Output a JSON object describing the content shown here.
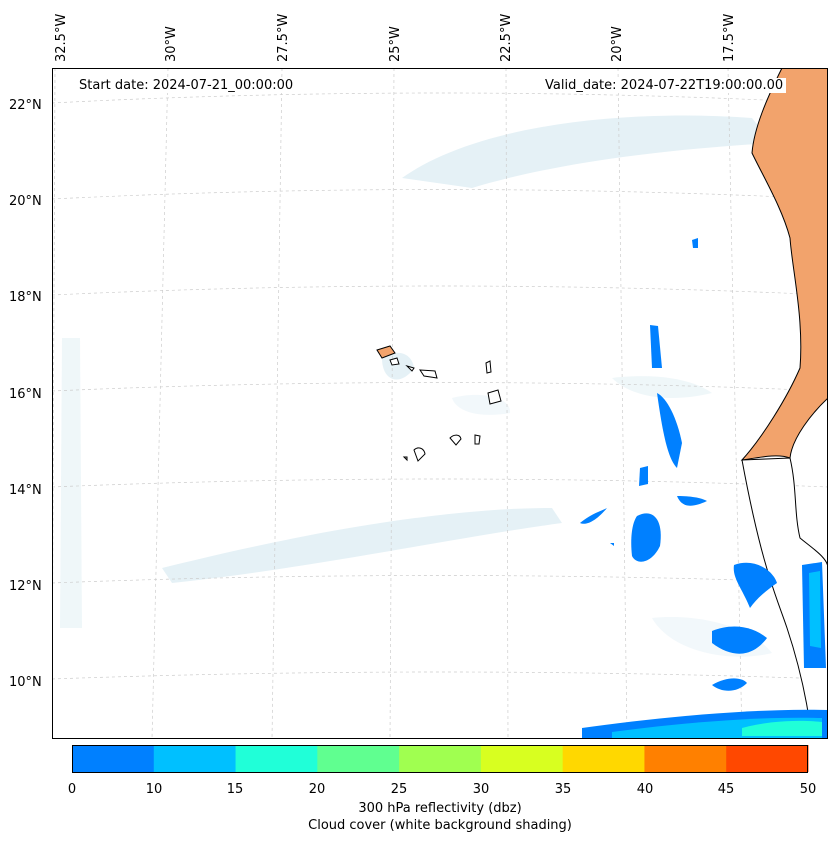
{
  "header": {
    "start_date": "Start date: 2024-07-21_00:00:00",
    "valid_date": "Valid_date: 2024-07-22T19:00:00.00"
  },
  "longitude_labels": [
    "32.5°W",
    "30°W",
    "27.5°W",
    "25°W",
    "22.5°W",
    "20°W",
    "17.5°W"
  ],
  "latitude_labels": [
    "22°N",
    "20°N",
    "18°N",
    "16°N",
    "14°N",
    "12°N",
    "10°N"
  ],
  "colorbar": {
    "ticks": [
      "0",
      "10",
      "15",
      "20",
      "25",
      "30",
      "35",
      "40",
      "45",
      "50"
    ],
    "colors": [
      "#0080ff",
      "#00c0ff",
      "#20ffd8",
      "#60ff90",
      "#a0ff50",
      "#d8ff20",
      "#ffd800",
      "#ff8000",
      "#ff4800"
    ],
    "label_line1": "300 hPa reflectivity (dbz)",
    "label_line2": "Cloud cover (white background shading)"
  },
  "map": {
    "land_color": "#f2a36c",
    "cloud_color": "#cfe6ef",
    "echo_colors": {
      "low": "#0080ff",
      "mid": "#00c0ff",
      "high": "#20ffd8"
    }
  }
}
